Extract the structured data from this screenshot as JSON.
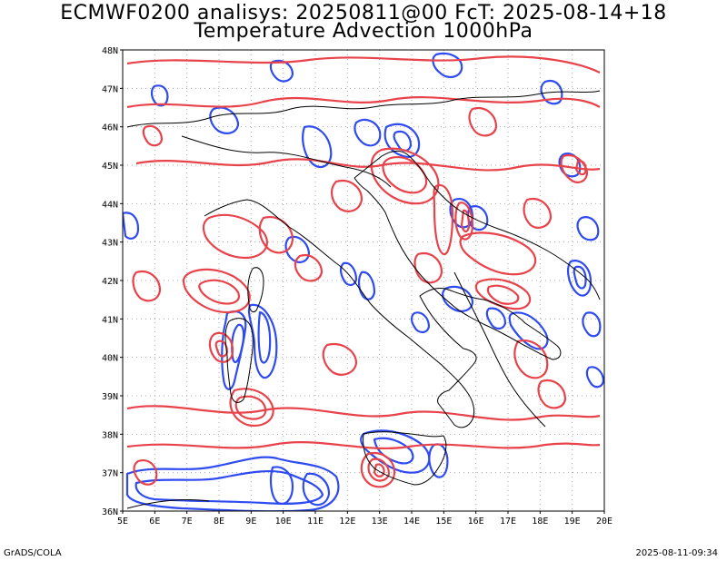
{
  "title": {
    "line1": "ECMWF0200 analisys: 20250811@00 FcT: 2025-08-14+18",
    "line2": "Temperature Advection 1000hPa"
  },
  "map": {
    "lon_range": [
      5,
      20
    ],
    "lat_range": [
      36,
      48
    ],
    "x_ticks": [
      "5E",
      "6E",
      "7E",
      "8E",
      "9E",
      "10E",
      "11E",
      "12E",
      "13E",
      "14E",
      "15E",
      "16E",
      "17E",
      "18E",
      "19E",
      "20E"
    ],
    "y_ticks": [
      "36N",
      "37N",
      "38N",
      "39N",
      "40N",
      "41N",
      "42N",
      "43N",
      "44N",
      "45N",
      "46N",
      "47N",
      "48N"
    ],
    "grid": true,
    "colors": {
      "positive": "#e8434b",
      "negative": "#2f4bf0",
      "coast": "#000000"
    }
  },
  "footer": {
    "left": "GrADS/COLA",
    "right": "2025-08-11-09:34"
  }
}
